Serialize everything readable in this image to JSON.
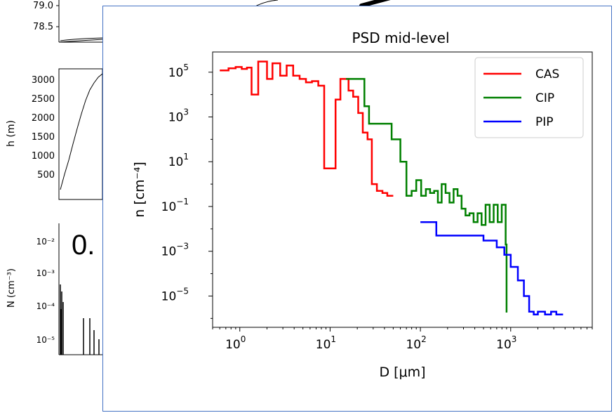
{
  "background": {
    "panel_top": {
      "ticks": [
        "79.0",
        "78.5"
      ]
    },
    "panel_h": {
      "ylabel": "h (m)",
      "ticks": [
        "3000",
        "2500",
        "2000",
        "1500",
        "1000",
        "500"
      ]
    },
    "panel_n": {
      "ylabel": "N (cm⁻³)",
      "ticks": [
        "10⁻²",
        "10⁻³",
        "10⁻⁴",
        "10⁻⁵"
      ]
    },
    "big_text": "0."
  },
  "chart_data": {
    "type": "line",
    "title": "PSD mid-level",
    "xlabel": "D [μm]",
    "ylabel": "n [cm⁻⁴]",
    "x_scale": "log",
    "y_scale": "log",
    "xlim": [
      0.5,
      8000
    ],
    "ylim": [
      4e-07,
      800000.0
    ],
    "x_ticks": [
      {
        "v": 1,
        "label": "10",
        "exp": "0"
      },
      {
        "v": 10,
        "label": "10",
        "exp": "1"
      },
      {
        "v": 100,
        "label": "10",
        "exp": "2"
      },
      {
        "v": 1000,
        "label": "10",
        "exp": "3"
      }
    ],
    "y_ticks": [
      {
        "v": 100000.0,
        "label": "10",
        "exp": "5"
      },
      {
        "v": 1000.0,
        "label": "10",
        "exp": "3"
      },
      {
        "v": 10.0,
        "label": "10",
        "exp": "1"
      },
      {
        "v": 0.1,
        "label": "10",
        "exp": "−1"
      },
      {
        "v": 0.001,
        "label": "10",
        "exp": "−3"
      },
      {
        "v": 1e-05,
        "label": "10",
        "exp": "−5"
      }
    ],
    "legend_position": "top-right",
    "grid": false,
    "series": [
      {
        "name": "CAS",
        "color": "#ff0000",
        "points": [
          [
            0.6,
            120000.0
          ],
          [
            0.75,
            150000.0
          ],
          [
            0.9,
            170000.0
          ],
          [
            1.05,
            140000.0
          ],
          [
            1.2,
            160000.0
          ],
          [
            1.35,
            10000.0
          ],
          [
            1.6,
            300000.0
          ],
          [
            2.0,
            50000.0
          ],
          [
            2.3,
            250000.0
          ],
          [
            2.8,
            70000.0
          ],
          [
            3.3,
            200000.0
          ],
          [
            3.9,
            70000.0
          ],
          [
            4.6,
            50000.0
          ],
          [
            5.4,
            35000.0
          ],
          [
            6.3,
            40000.0
          ],
          [
            7.4,
            25000.0
          ],
          [
            8.6,
            5
          ],
          [
            10,
            5
          ],
          [
            11.5,
            6000.0
          ],
          [
            13,
            50000.0
          ],
          [
            14.5,
            50000.0
          ],
          [
            16,
            15000.0
          ],
          [
            18,
            8000.0
          ],
          [
            20.5,
            1500.0
          ],
          [
            23,
            200.0
          ],
          [
            26,
            100.0
          ],
          [
            29,
            1
          ],
          [
            33,
            0.5
          ],
          [
            38,
            0.4
          ],
          [
            43,
            0.3
          ],
          [
            50,
            0.3
          ]
        ]
      },
      {
        "name": "CIP",
        "color": "#008000",
        "points": [
          [
            15,
            50000.0
          ],
          [
            22,
            50000.0
          ],
          [
            24,
            3000.0
          ],
          [
            27,
            500
          ],
          [
            48,
            100
          ],
          [
            60,
            10
          ],
          [
            70,
            0.3
          ],
          [
            80,
            0.5
          ],
          [
            90,
            1.5
          ],
          [
            102,
            0.3
          ],
          [
            115,
            0.6
          ],
          [
            128,
            0.4
          ],
          [
            142,
            0.5
          ],
          [
            156,
            0.15
          ],
          [
            172,
            1
          ],
          [
            190,
            0.4
          ],
          [
            210,
            0.15
          ],
          [
            233,
            0.6
          ],
          [
            258,
            0.3
          ],
          [
            286,
            0.08
          ],
          [
            316,
            0.04
          ],
          [
            350,
            0.05
          ],
          [
            388,
            0.02
          ],
          [
            430,
            0.05
          ],
          [
            476,
            0.015
          ],
          [
            527,
            0.12
          ],
          [
            585,
            0.02
          ],
          [
            648,
            0.12
          ],
          [
            718,
            0.02
          ],
          [
            795,
            0.12
          ],
          [
            880,
            0.002
          ],
          [
            900,
            2e-06
          ],
          [
            920,
            2e-06
          ]
        ]
      },
      {
        "name": "PIP",
        "color": "#0000ff",
        "points": [
          [
            100,
            0.02
          ],
          [
            150,
            0.02
          ],
          [
            150,
            0.005
          ],
          [
            300,
            0.005
          ],
          [
            500,
            0.003
          ],
          [
            700,
            0.0015
          ],
          [
            850,
            0.0007
          ],
          [
            1000,
            0.0002
          ],
          [
            1200,
            5e-05
          ],
          [
            1400,
            1e-05
          ],
          [
            1600,
            2e-06
          ],
          [
            1800,
            1.5e-06
          ],
          [
            2000,
            2e-06
          ],
          [
            2400,
            1.5e-06
          ],
          [
            2800,
            2e-06
          ],
          [
            3200,
            1.5e-06
          ],
          [
            3600,
            1.5e-06
          ],
          [
            3800,
            1.5e-06
          ]
        ]
      }
    ]
  }
}
